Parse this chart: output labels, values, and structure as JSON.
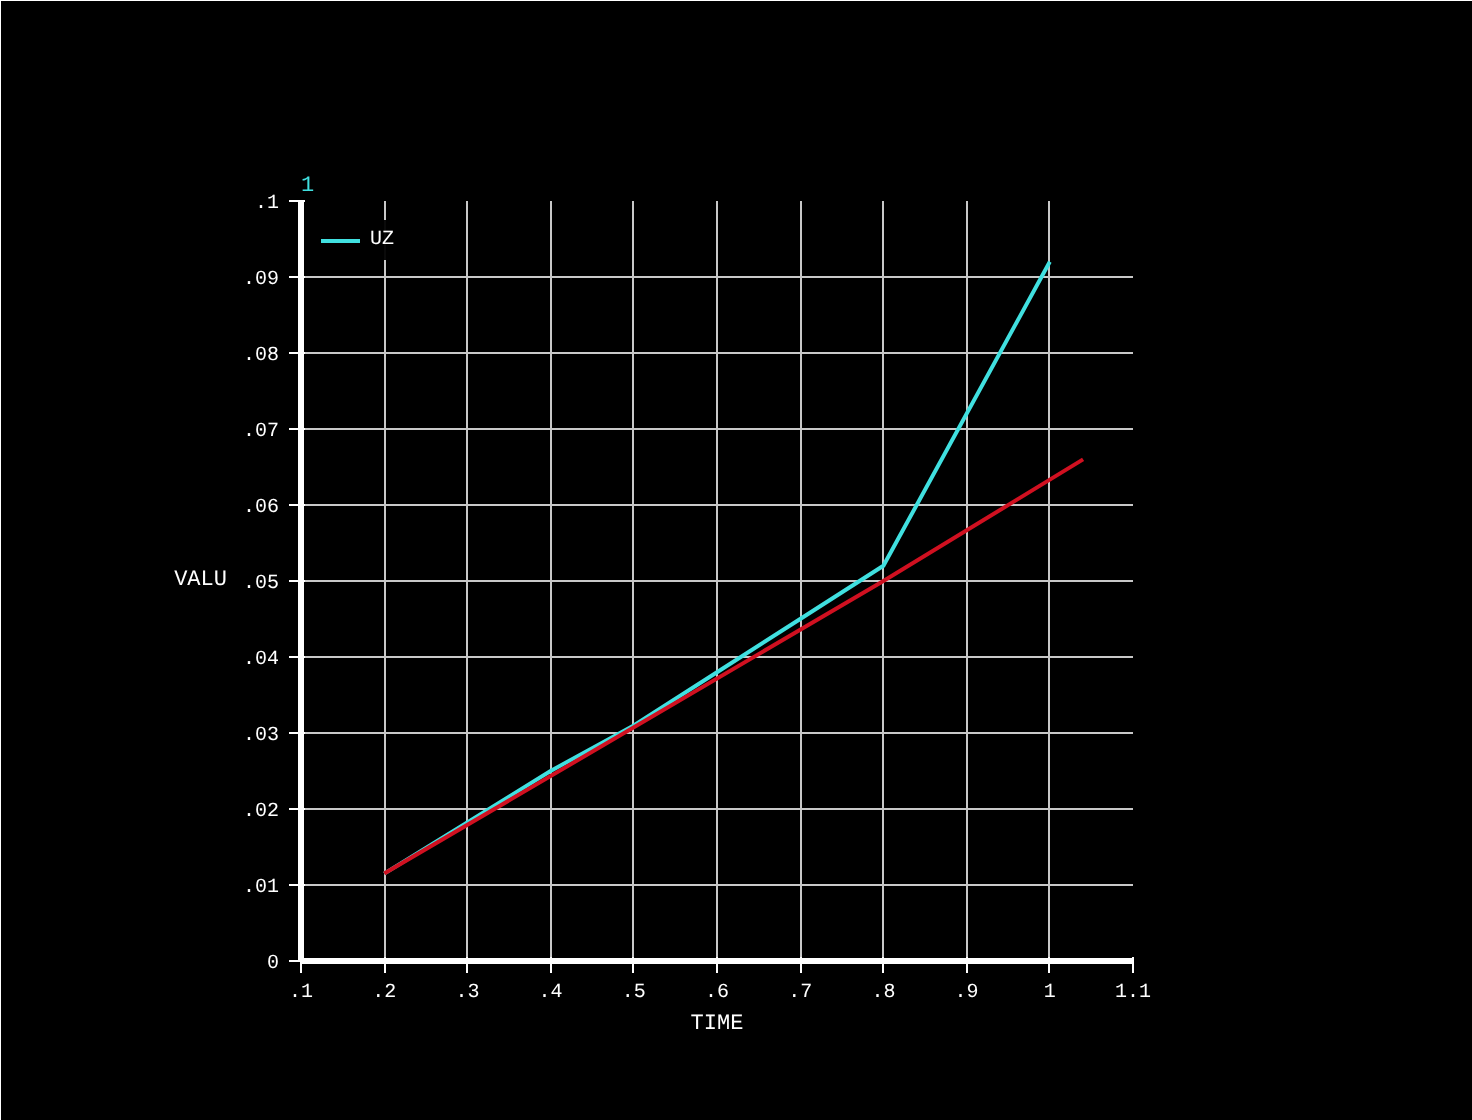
{
  "chart_data": {
    "type": "line",
    "xlabel": "TIME",
    "ylabel": "VALU",
    "annotations": [
      "1"
    ],
    "xlim": [
      0.1,
      1.1
    ],
    "ylim": [
      0,
      0.1
    ],
    "xticks": [
      {
        "value": 0.1,
        "label": ".1"
      },
      {
        "value": 0.2,
        "label": ".2"
      },
      {
        "value": 0.3,
        "label": ".3"
      },
      {
        "value": 0.4,
        "label": ".4"
      },
      {
        "value": 0.5,
        "label": ".5"
      },
      {
        "value": 0.6,
        "label": ".6"
      },
      {
        "value": 0.7,
        "label": ".7"
      },
      {
        "value": 0.8,
        "label": ".8"
      },
      {
        "value": 0.9,
        "label": ".9"
      },
      {
        "value": 1,
        "label": "1"
      },
      {
        "value": 1.1,
        "label": "1.1"
      }
    ],
    "yticks": [
      0,
      {
        "value": 0.01,
        "label": ".01"
      },
      {
        "value": 0.02,
        "label": ".02"
      },
      {
        "value": 0.03,
        "label": ".03"
      },
      {
        "value": 0.04,
        "label": ".04"
      },
      {
        "value": 0.05,
        "label": ".05"
      },
      {
        "value": 0.06,
        "label": ".06"
      },
      {
        "value": 0.07,
        "label": ".07"
      },
      {
        "value": 0.08,
        "label": ".08"
      },
      {
        "value": 0.09,
        "label": ".09"
      },
      {
        "value": 0.1,
        "label": ".1"
      }
    ],
    "grid": true,
    "legend": "top left",
    "marker": "none",
    "line_style": "solid",
    "series": [
      {
        "name": "UZ",
        "color": "#40e0e0",
        "x": [
          0.2,
          0.4,
          0.5,
          0.6,
          0.7,
          0.8,
          1.0
        ],
        "values": [
          0.0115,
          0.025,
          0.031,
          0.038,
          0.045,
          0.052,
          0.092
        ]
      },
      {
        "color": "#d01020",
        "x": [
          0.2,
          0.8,
          1.04
        ],
        "values": [
          0.0115,
          0.05,
          0.066
        ]
      }
    ]
  }
}
